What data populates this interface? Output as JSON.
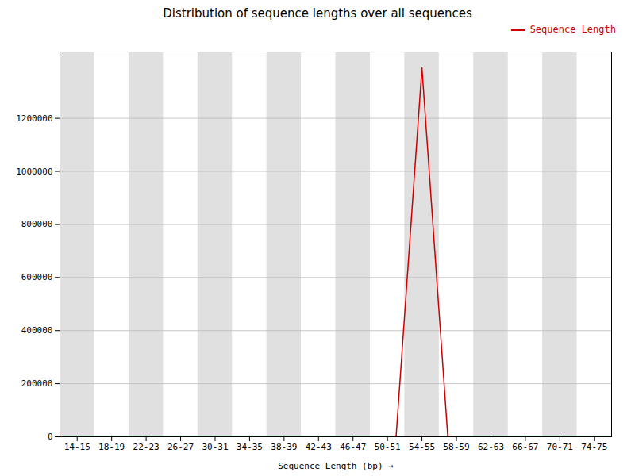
{
  "chart_data": {
    "type": "line",
    "title": "Distribution of sequence lengths over all sequences",
    "xlabel": "Sequence Length (bp)",
    "x": [
      12.5,
      14.5,
      18.5,
      22.5,
      26.5,
      30.5,
      34.5,
      38.5,
      42.5,
      46.5,
      50.5,
      51.5,
      54.5,
      57.5,
      58.5,
      62.5,
      66.5,
      70.5,
      74.5,
      76.5
    ],
    "series": [
      {
        "name": "Sequence Length",
        "color": "#cc0000",
        "values": [
          0,
          0,
          0,
          0,
          0,
          0,
          0,
          0,
          0,
          0,
          0,
          0,
          1390000,
          0,
          0,
          0,
          0,
          0,
          0,
          0
        ]
      }
    ],
    "xlim": [
      12.5,
      76.5
    ],
    "xticks": [
      {
        "value": 14.5,
        "label": "14-15"
      },
      {
        "value": 18.5,
        "label": "18-19"
      },
      {
        "value": 22.5,
        "label": "22-23"
      },
      {
        "value": 26.5,
        "label": "26-27"
      },
      {
        "value": 30.5,
        "label": "30-31"
      },
      {
        "value": 34.5,
        "label": "34-35"
      },
      {
        "value": 38.5,
        "label": "38-39"
      },
      {
        "value": 42.5,
        "label": "42-43"
      },
      {
        "value": 46.5,
        "label": "46-47"
      },
      {
        "value": 50.5,
        "label": "50-51"
      },
      {
        "value": 54.5,
        "label": "54-55"
      },
      {
        "value": 58.5,
        "label": "58-59"
      },
      {
        "value": 62.5,
        "label": "62-63"
      },
      {
        "value": 66.5,
        "label": "66-67"
      },
      {
        "value": 70.5,
        "label": "70-71"
      },
      {
        "value": 74.5,
        "label": "74-75"
      }
    ],
    "ylim": [
      0,
      1450000
    ],
    "yticks": [
      0,
      200000,
      400000,
      600000,
      800000,
      1000000,
      1200000
    ],
    "grid": true,
    "legend": "upper right"
  }
}
